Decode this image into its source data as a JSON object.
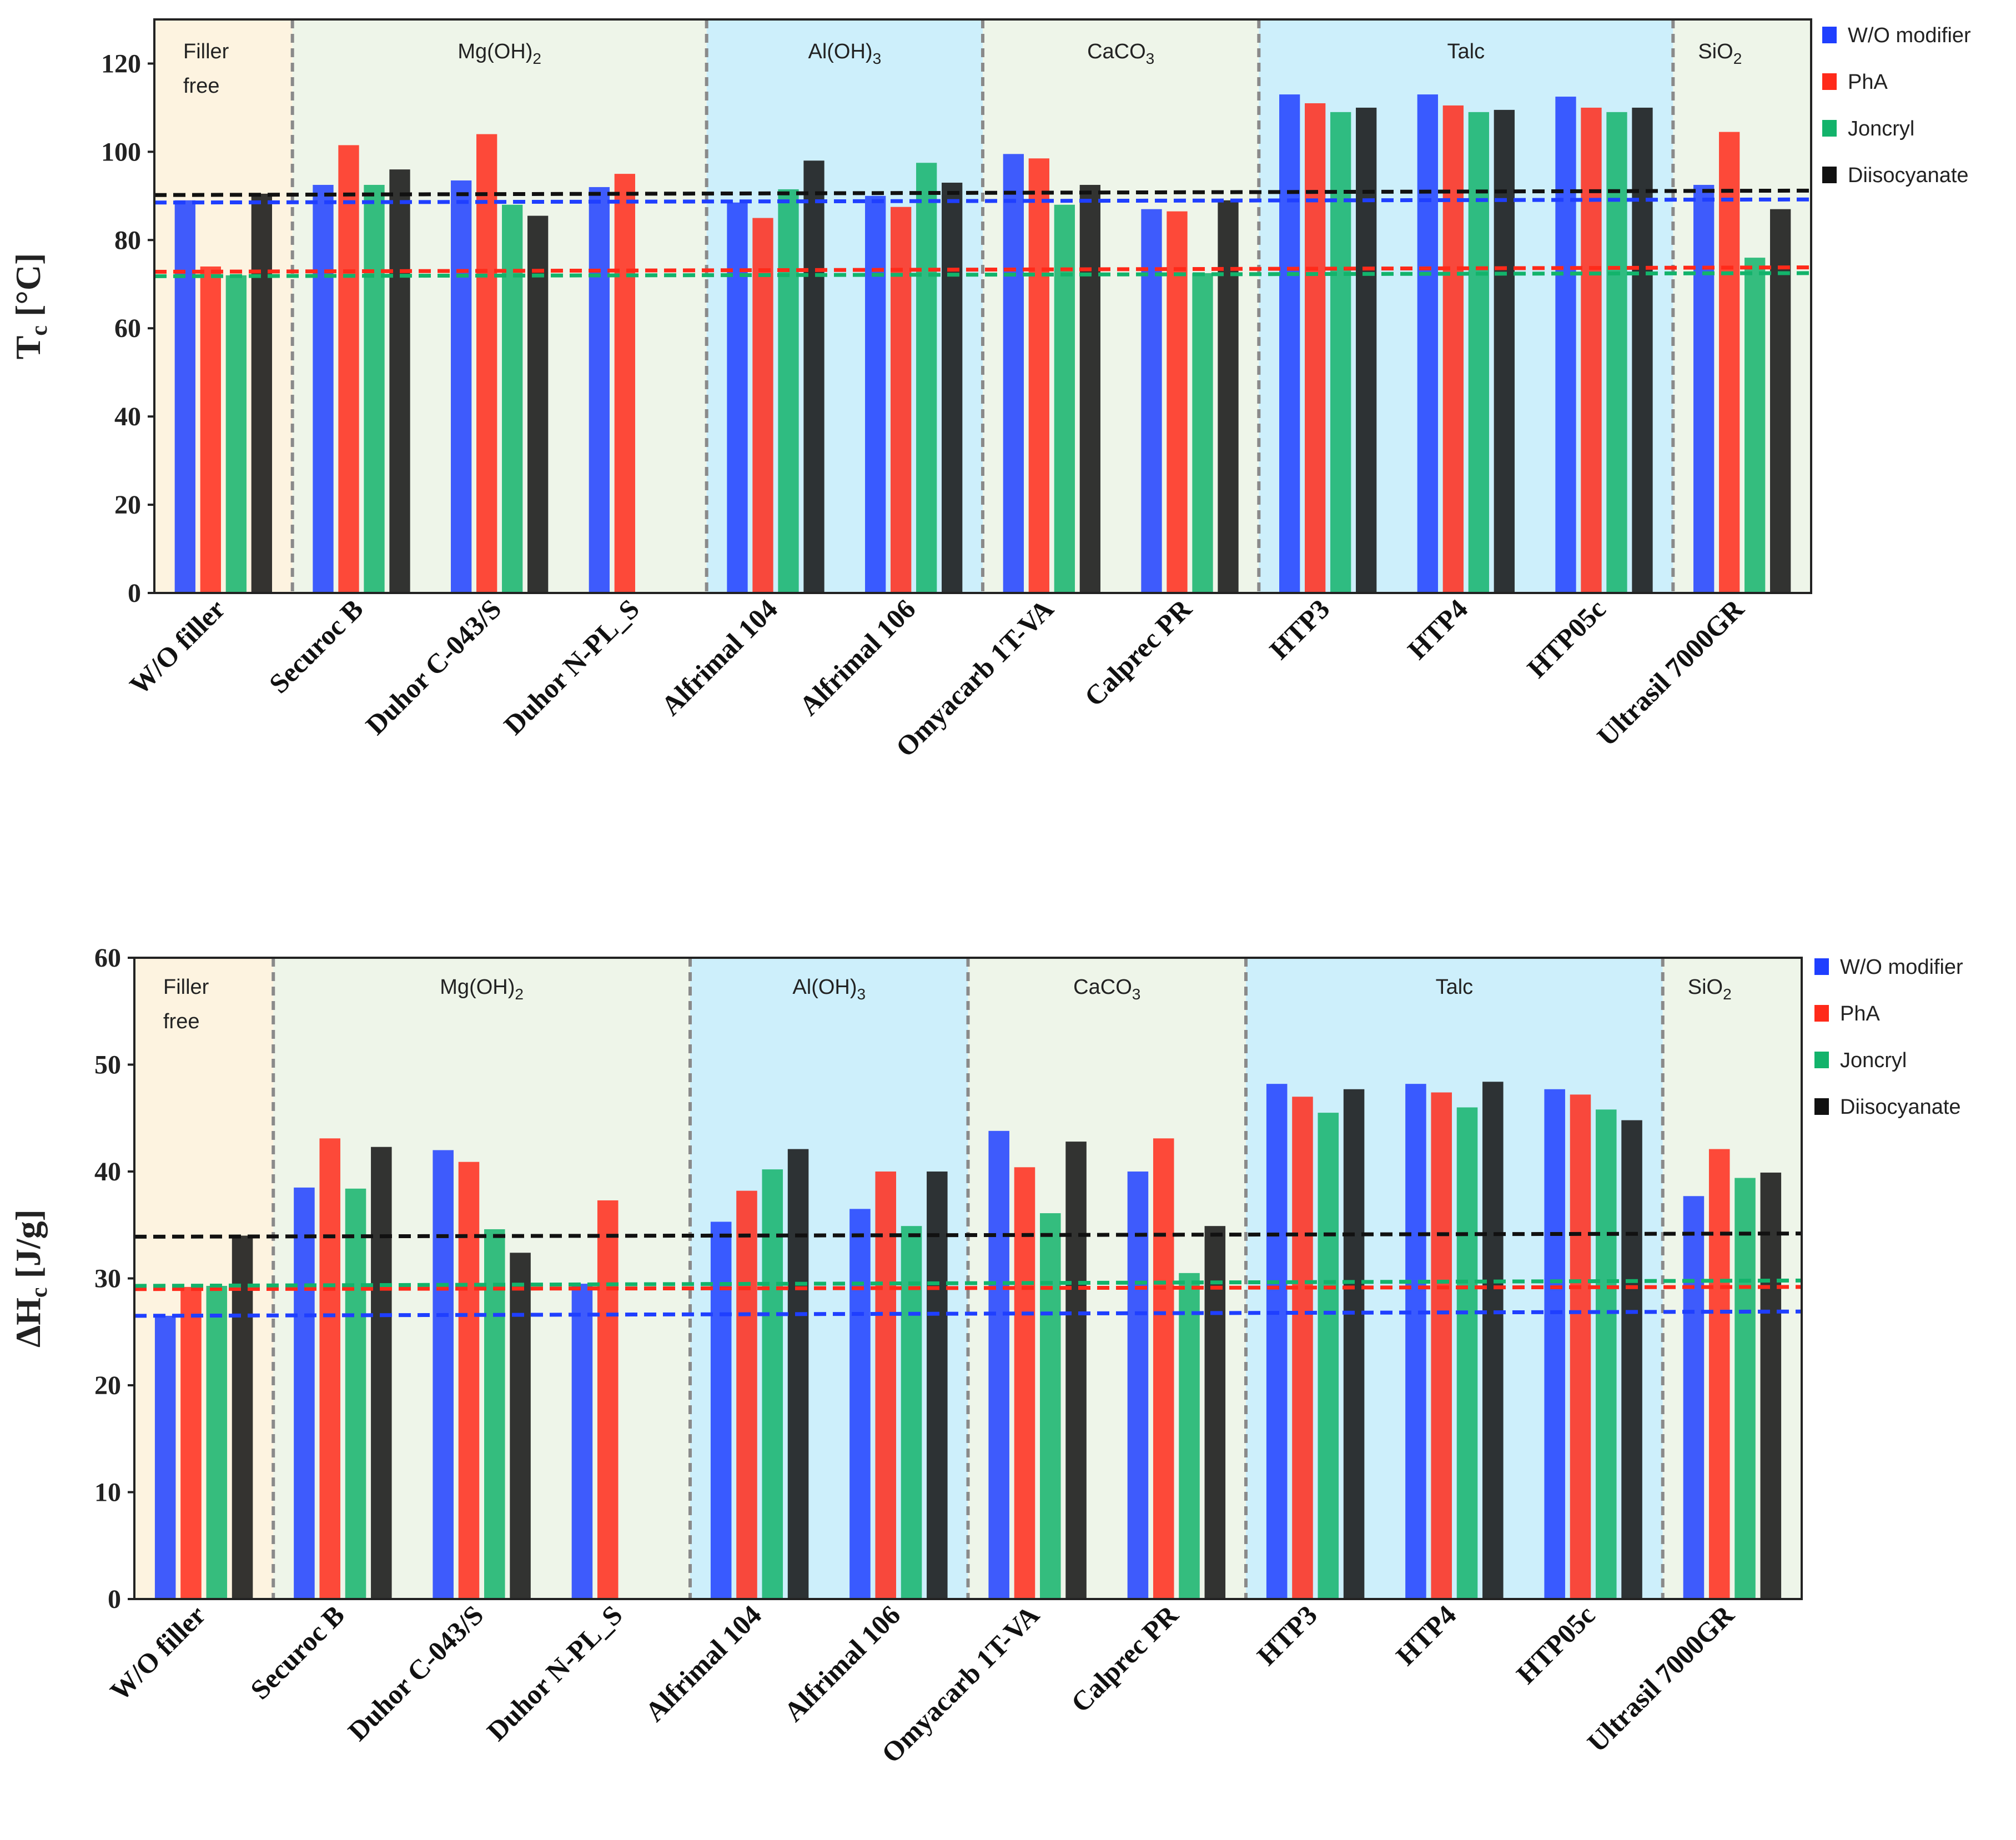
{
  "figure": {
    "colors": {
      "wo_modifier": "#1f3fff",
      "pha": "#ff2a1a",
      "joncryl": "#13b36b",
      "diisocyanate": "#111111",
      "filler_free_bg": "#fdf3e0",
      "mgoh_bg": "#eef5e9",
      "aloh_bg": "#cdeffb",
      "caco3_bg": "#eef5e9",
      "talc_bg": "#cdeffb",
      "sio2_bg": "#eef5e9"
    }
  },
  "chart_data": [
    {
      "type": "bar",
      "title": "",
      "ylabel_main": "T",
      "ylabel_sub": "c",
      "ylabel_unit": " [°C]",
      "ylim": [
        0,
        130
      ],
      "yticks": [
        "0",
        "20",
        "40",
        "60",
        "80",
        "100",
        "120"
      ],
      "categories": [
        "W/O filler",
        "Securoc B",
        "Duhor C-043/S",
        "Duhor N-PL_S",
        "Alfrimal 104",
        "Alfrimal 106",
        "Omyacarb 1T-VA",
        "Calprec  PR",
        "HTP3",
        "HTP4",
        "HTP05c",
        "Ultrasil 7000GR"
      ],
      "groups": [
        {
          "label": "Filler free",
          "label2": "",
          "start": 0,
          "end": 1,
          "bg": "filler_free_bg",
          "align": "left"
        },
        {
          "label": "Mg(OH)",
          "label2": "2",
          "start": 1,
          "end": 4,
          "bg": "mgoh_bg",
          "align": "center"
        },
        {
          "label": "Al(OH)",
          "label2": "3",
          "start": 4,
          "end": 6,
          "bg": "aloh_bg",
          "align": "center"
        },
        {
          "label": "CaCO",
          "label2": "3",
          "start": 6,
          "end": 8,
          "bg": "caco3_bg",
          "align": "center"
        },
        {
          "label": "Talc",
          "label2": "",
          "start": 8,
          "end": 11,
          "bg": "talc_bg",
          "align": "center"
        },
        {
          "label": "SiO",
          "label2": "2",
          "start": 11,
          "end": 12,
          "bg": "sio2_bg",
          "align": "left"
        }
      ],
      "series": [
        {
          "name": "W/O modifier",
          "color_key": "wo_modifier",
          "values": [
            89,
            92.5,
            93.5,
            92,
            88.5,
            90,
            99.5,
            87,
            113,
            113,
            112.5,
            92.5
          ]
        },
        {
          "name": "PhA",
          "color_key": "pha",
          "values": [
            74,
            101.5,
            104,
            95,
            85,
            87.5,
            98.5,
            86.5,
            111,
            110.5,
            110,
            104.5
          ]
        },
        {
          "name": "Joncryl",
          "color_key": "joncryl",
          "values": [
            72,
            92.5,
            88,
            null,
            91.5,
            97.5,
            88,
            72.5,
            109,
            109,
            109,
            76
          ]
        },
        {
          "name": "Diisocyanate",
          "color_key": "diisocyanate",
          "values": [
            90.5,
            96,
            85.5,
            null,
            98,
            93,
            92.5,
            89,
            110,
            109.5,
            110,
            87
          ]
        }
      ],
      "reference_lines": [
        {
          "series": "W/O modifier",
          "color_key": "wo_modifier",
          "y_start": 88.5,
          "y_end": 89.2
        },
        {
          "series": "PhA",
          "color_key": "pha",
          "y_start": 72.8,
          "y_end": 73.8
        },
        {
          "series": "Joncryl",
          "color_key": "joncryl",
          "y_start": 71.8,
          "y_end": 72.5
        },
        {
          "series": "Diisocyanate",
          "color_key": "diisocyanate",
          "y_start": 90.2,
          "y_end": 91.2
        }
      ],
      "legend": "top-right"
    },
    {
      "type": "bar",
      "title": "",
      "ylabel_main": "ΔH",
      "ylabel_sub": "c",
      "ylabel_unit": " [J/g]",
      "ylim": [
        0,
        60
      ],
      "yticks": [
        "0",
        "10",
        "20",
        "30",
        "40",
        "50",
        "60"
      ],
      "categories": [
        "W/O filler",
        "Securoc B",
        "Duhor C-043/S",
        "Duhor N-PL_S",
        "Alfrimal 104",
        "Alfrimal 106",
        "Omyacarb 1T-VA",
        "Calprec  PR",
        "HTP3",
        "HTP4",
        "HTP05c",
        "Ultrasil 7000GR"
      ],
      "groups": [
        {
          "label": "Filler free",
          "label2": "",
          "start": 0,
          "end": 1,
          "bg": "filler_free_bg",
          "align": "left"
        },
        {
          "label": "Mg(OH)",
          "label2": "2",
          "start": 1,
          "end": 4,
          "bg": "mgoh_bg",
          "align": "center"
        },
        {
          "label": "Al(OH)",
          "label2": "3",
          "start": 4,
          "end": 6,
          "bg": "aloh_bg",
          "align": "center"
        },
        {
          "label": "CaCO",
          "label2": "3",
          "start": 6,
          "end": 8,
          "bg": "caco3_bg",
          "align": "center"
        },
        {
          "label": "Talc",
          "label2": "",
          "start": 8,
          "end": 11,
          "bg": "talc_bg",
          "align": "center"
        },
        {
          "label": "SiO",
          "label2": "2",
          "start": 11,
          "end": 12,
          "bg": "sio2_bg",
          "align": "left"
        }
      ],
      "series": [
        {
          "name": "W/O modifier",
          "color_key": "wo_modifier",
          "values": [
            26.5,
            38.5,
            42,
            29.5,
            35.3,
            36.5,
            43.8,
            40,
            48.2,
            48.2,
            47.7,
            37.7
          ]
        },
        {
          "name": "PhA",
          "color_key": "pha",
          "values": [
            29.2,
            43.1,
            40.9,
            37.3,
            38.2,
            40,
            40.4,
            43.1,
            47,
            47.4,
            47.2,
            42.1
          ]
        },
        {
          "name": "Joncryl",
          "color_key": "joncryl",
          "values": [
            29.3,
            38.4,
            34.6,
            null,
            40.2,
            34.9,
            36.1,
            30.5,
            45.5,
            46,
            45.8,
            39.4
          ]
        },
        {
          "name": "Diisocyanate",
          "color_key": "diisocyanate",
          "values": [
            34,
            42.3,
            32.4,
            null,
            42.1,
            40,
            42.8,
            34.9,
            47.7,
            48.4,
            44.8,
            39.9
          ]
        }
      ],
      "reference_lines": [
        {
          "series": "W/O modifier",
          "color_key": "wo_modifier",
          "y_start": 26.5,
          "y_end": 26.9
        },
        {
          "series": "PhA",
          "color_key": "pha",
          "y_start": 29.0,
          "y_end": 29.2
        },
        {
          "series": "Joncryl",
          "color_key": "joncryl",
          "y_start": 29.3,
          "y_end": 29.8
        },
        {
          "series": "Diisocyanate",
          "color_key": "diisocyanate",
          "y_start": 33.9,
          "y_end": 34.2
        }
      ],
      "legend": "top-right"
    }
  ]
}
